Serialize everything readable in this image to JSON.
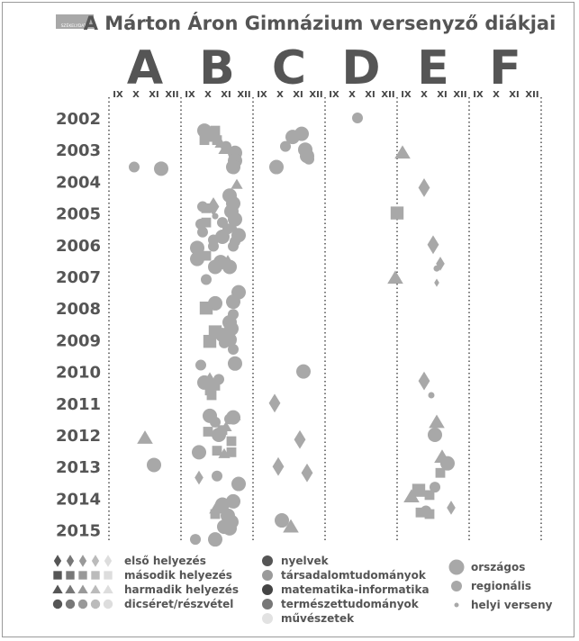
{
  "chart_data": {
    "type": "scatter",
    "title": "A Márton Áron Gimnázium versenyző diákjai",
    "logo_text": "SZÉKELYDATA",
    "columns": [
      "A",
      "B",
      "C",
      "D",
      "E",
      "F"
    ],
    "months": [
      "IX",
      "X",
      "XI",
      "XII"
    ],
    "years": [
      "2002",
      "2003",
      "2004",
      "2005",
      "2006",
      "2007",
      "2008",
      "2009",
      "2010",
      "2011",
      "2012",
      "2013",
      "2014",
      "2015"
    ],
    "grid": "dotted vertical column separators",
    "legend_placement": "bottom",
    "legend": {
      "placement": [
        {
          "label": "első helyezés",
          "shape": "diamond"
        },
        {
          "label": "második helyezés",
          "shape": "square"
        },
        {
          "label": "harmadik helyezés",
          "shape": "triangle"
        },
        {
          "label": "dicséret/részvétel",
          "shape": "circle"
        }
      ],
      "category_colors": [
        "#555555",
        "#777777",
        "#999999",
        "#bbbbbb",
        "#dddddd"
      ],
      "fields": [
        {
          "label": "nyelvek",
          "color": "#555555"
        },
        {
          "label": "társadalomtudományok",
          "color": "#9a9a9a"
        },
        {
          "label": "matematika-informatika",
          "color": "#444444"
        },
        {
          "label": "természettudományok",
          "color": "#777777"
        },
        {
          "label": "művészetek",
          "color": "#e2e2e2"
        }
      ],
      "levels": [
        {
          "label": "országos",
          "size": "large"
        },
        {
          "label": "regionális",
          "size": "medium"
        },
        {
          "label": "helyi verseny",
          "size": "small"
        }
      ]
    },
    "points": [
      {
        "x": 5.3,
        "y": 2002.4,
        "shape": "circle",
        "size": "l",
        "color": "#a8a8a8"
      },
      {
        "x": 5.9,
        "y": 2002.4,
        "shape": "square",
        "size": "m",
        "color": "#a8a8a8"
      },
      {
        "x": 5.7,
        "y": 2002.6,
        "shape": "square",
        "size": "m",
        "color": "#a8a8a8"
      },
      {
        "x": 5.3,
        "y": 2002.7,
        "shape": "square",
        "size": "m",
        "color": "#a8a8a8"
      },
      {
        "x": 6.0,
        "y": 2002.7,
        "shape": "square",
        "size": "m",
        "color": "#a8a8a8"
      },
      {
        "x": 6.2,
        "y": 2002.8,
        "shape": "triangle",
        "size": "m",
        "color": "#a8a8a8"
      },
      {
        "x": 6.5,
        "y": 2002.9,
        "shape": "circle",
        "size": "m",
        "color": "#a8a8a8"
      },
      {
        "x": 6.4,
        "y": 2003.0,
        "shape": "triangle",
        "size": "m",
        "color": "#a8a8a8"
      },
      {
        "x": 7.0,
        "y": 2003.1,
        "shape": "circle",
        "size": "l",
        "color": "#a8a8a8"
      },
      {
        "x": 7.0,
        "y": 2003.35,
        "shape": "circle",
        "size": "l",
        "color": "#a8a8a8"
      },
      {
        "x": 6.9,
        "y": 2003.55,
        "shape": "circle",
        "size": "l",
        "color": "#a8a8a8"
      },
      {
        "x": 10.2,
        "y": 2002.6,
        "shape": "circle",
        "size": "l",
        "color": "#a8a8a8"
      },
      {
        "x": 10.7,
        "y": 2002.5,
        "shape": "circle",
        "size": "l",
        "color": "#a8a8a8"
      },
      {
        "x": 9.8,
        "y": 2002.9,
        "shape": "circle",
        "size": "m",
        "color": "#a8a8a8"
      },
      {
        "x": 10.9,
        "y": 2003.0,
        "shape": "circle",
        "size": "l",
        "color": "#a8a8a8"
      },
      {
        "x": 11.0,
        "y": 2003.2,
        "shape": "circle",
        "size": "l",
        "color": "#a8a8a8"
      },
      {
        "x": 11.1,
        "y": 2003.3,
        "shape": "circle",
        "size": "m",
        "color": "#a8a8a8"
      },
      {
        "x": 9.3,
        "y": 2003.55,
        "shape": "circle",
        "size": "l",
        "color": "#a8a8a8"
      },
      {
        "x": 13.8,
        "y": 2002.0,
        "shape": "circle",
        "size": "m",
        "color": "#a8a8a8"
      },
      {
        "x": 1.4,
        "y": 2003.55,
        "shape": "circle",
        "size": "m",
        "color": "#a8a8a8"
      },
      {
        "x": 2.9,
        "y": 2003.6,
        "shape": "circle",
        "size": "l",
        "color": "#a8a8a8"
      },
      {
        "x": 16.3,
        "y": 2003.1,
        "shape": "triangle",
        "size": "l",
        "color": "#a8a8a8"
      },
      {
        "x": 17.5,
        "y": 2004.2,
        "shape": "diamond",
        "size": "l",
        "color": "#a8a8a8"
      },
      {
        "x": 7.1,
        "y": 2004.1,
        "shape": "triangle",
        "size": "m",
        "color": "#a8a8a8"
      },
      {
        "x": 6.7,
        "y": 2004.45,
        "shape": "circle",
        "size": "l",
        "color": "#a8a8a8"
      },
      {
        "x": 6.9,
        "y": 2004.7,
        "shape": "circle",
        "size": "l",
        "color": "#a8a8a8"
      },
      {
        "x": 6.8,
        "y": 2004.95,
        "shape": "circle",
        "size": "l",
        "color": "#a8a8a8"
      },
      {
        "x": 5.2,
        "y": 2004.8,
        "shape": "circle",
        "size": "m",
        "color": "#a8a8a8"
      },
      {
        "x": 5.4,
        "y": 2004.85,
        "shape": "square",
        "size": "m",
        "color": "#a8a8a8"
      },
      {
        "x": 5.8,
        "y": 2004.8,
        "shape": "diamond",
        "size": "l",
        "color": "#a8a8a8"
      },
      {
        "x": 5.9,
        "y": 2005.1,
        "shape": "circle",
        "size": "s",
        "color": "#a8a8a8"
      },
      {
        "x": 5.1,
        "y": 2005.35,
        "shape": "circle",
        "size": "m",
        "color": "#a8a8a8"
      },
      {
        "x": 5.4,
        "y": 2005.3,
        "shape": "square",
        "size": "m",
        "color": "#a8a8a8"
      },
      {
        "x": 6.3,
        "y": 2005.3,
        "shape": "circle",
        "size": "m",
        "color": "#a8a8a8"
      },
      {
        "x": 7.0,
        "y": 2005.2,
        "shape": "circle",
        "size": "l",
        "color": "#a8a8a8"
      },
      {
        "x": 6.6,
        "y": 2005.5,
        "shape": "circle",
        "size": "m",
        "color": "#a8a8a8"
      },
      {
        "x": 6.9,
        "y": 2005.45,
        "shape": "triangle",
        "size": "m",
        "color": "#a8a8a8"
      },
      {
        "x": 16.0,
        "y": 2005.0,
        "shape": "square",
        "size": "l",
        "color": "#a8a8a8"
      },
      {
        "x": 5.2,
        "y": 2005.6,
        "shape": "circle",
        "size": "m",
        "color": "#a8a8a8"
      },
      {
        "x": 5.8,
        "y": 2005.85,
        "shape": "circle",
        "size": "m",
        "color": "#a8a8a8"
      },
      {
        "x": 6.3,
        "y": 2005.75,
        "shape": "circle",
        "size": "l",
        "color": "#a8a8a8"
      },
      {
        "x": 7.2,
        "y": 2005.7,
        "shape": "circle",
        "size": "l",
        "color": "#a8a8a8"
      },
      {
        "x": 7.0,
        "y": 2005.9,
        "shape": "circle",
        "size": "m",
        "color": "#a8a8a8"
      },
      {
        "x": 4.9,
        "y": 2006.1,
        "shape": "circle",
        "size": "l",
        "color": "#a8a8a8"
      },
      {
        "x": 5.8,
        "y": 2006.05,
        "shape": "circle",
        "size": "m",
        "color": "#a8a8a8"
      },
      {
        "x": 6.9,
        "y": 2006.05,
        "shape": "circle",
        "size": "m",
        "color": "#a8a8a8"
      },
      {
        "x": 4.9,
        "y": 2006.45,
        "shape": "circle",
        "size": "l",
        "color": "#a8a8a8"
      },
      {
        "x": 5.4,
        "y": 2006.35,
        "shape": "square",
        "size": "m",
        "color": "#a8a8a8"
      },
      {
        "x": 6.2,
        "y": 2006.55,
        "shape": "circle",
        "size": "l",
        "color": "#a8a8a8"
      },
      {
        "x": 5.9,
        "y": 2006.7,
        "shape": "circle",
        "size": "l",
        "color": "#a8a8a8"
      },
      {
        "x": 6.7,
        "y": 2006.7,
        "shape": "circle",
        "size": "l",
        "color": "#a8a8a8"
      },
      {
        "x": 6.6,
        "y": 2006.5,
        "shape": "triangle",
        "size": "m",
        "color": "#a8a8a8"
      },
      {
        "x": 18.0,
        "y": 2006.0,
        "shape": "diamond",
        "size": "l",
        "color": "#a8a8a8"
      },
      {
        "x": 18.4,
        "y": 2006.6,
        "shape": "diamond",
        "size": "m",
        "color": "#a8a8a8"
      },
      {
        "x": 18.2,
        "y": 2006.75,
        "shape": "circle",
        "size": "s",
        "color": "#a8a8a8"
      },
      {
        "x": 18.2,
        "y": 2007.2,
        "shape": "diamond",
        "size": "s",
        "color": "#a8a8a8"
      },
      {
        "x": 15.9,
        "y": 2007.05,
        "shape": "triangle",
        "size": "l",
        "color": "#a8a8a8"
      },
      {
        "x": 5.4,
        "y": 2007.1,
        "shape": "circle",
        "size": "m",
        "color": "#a8a8a8"
      },
      {
        "x": 7.2,
        "y": 2007.5,
        "shape": "circle",
        "size": "l",
        "color": "#a8a8a8"
      },
      {
        "x": 6.9,
        "y": 2007.8,
        "shape": "circle",
        "size": "l",
        "color": "#a8a8a8"
      },
      {
        "x": 5.9,
        "y": 2007.85,
        "shape": "circle",
        "size": "l",
        "color": "#a8a8a8"
      },
      {
        "x": 5.4,
        "y": 2008.0,
        "shape": "square",
        "size": "l",
        "color": "#a8a8a8"
      },
      {
        "x": 6.9,
        "y": 2008.2,
        "shape": "circle",
        "size": "m",
        "color": "#a8a8a8"
      },
      {
        "x": 6.7,
        "y": 2008.45,
        "shape": "circle",
        "size": "l",
        "color": "#a8a8a8"
      },
      {
        "x": 6.8,
        "y": 2008.65,
        "shape": "circle",
        "size": "l",
        "color": "#a8a8a8"
      },
      {
        "x": 5.9,
        "y": 2008.75,
        "shape": "square",
        "size": "l",
        "color": "#a8a8a8"
      },
      {
        "x": 6.3,
        "y": 2008.85,
        "shape": "circle",
        "size": "l",
        "color": "#a8a8a8"
      },
      {
        "x": 5.6,
        "y": 2009.05,
        "shape": "square",
        "size": "l",
        "color": "#a8a8a8"
      },
      {
        "x": 6.4,
        "y": 2009.1,
        "shape": "circle",
        "size": "m",
        "color": "#a8a8a8"
      },
      {
        "x": 6.7,
        "y": 2009.0,
        "shape": "circle",
        "size": "l",
        "color": "#a8a8a8"
      },
      {
        "x": 6.9,
        "y": 2009.3,
        "shape": "circle",
        "size": "m",
        "color": "#a8a8a8"
      },
      {
        "x": 5.1,
        "y": 2009.8,
        "shape": "circle",
        "size": "m",
        "color": "#a8a8a8"
      },
      {
        "x": 7.0,
        "y": 2009.75,
        "shape": "circle",
        "size": "l",
        "color": "#a8a8a8"
      },
      {
        "x": 10.8,
        "y": 2010.0,
        "shape": "circle",
        "size": "l",
        "color": "#a8a8a8"
      },
      {
        "x": 17.5,
        "y": 2010.3,
        "shape": "diamond",
        "size": "l",
        "color": "#a8a8a8"
      },
      {
        "x": 17.9,
        "y": 2010.75,
        "shape": "circle",
        "size": "s",
        "color": "#a8a8a8"
      },
      {
        "x": 5.3,
        "y": 2010.35,
        "shape": "circle",
        "size": "l",
        "color": "#a8a8a8"
      },
      {
        "x": 5.6,
        "y": 2010.2,
        "shape": "triangle",
        "size": "m",
        "color": "#a8a8a8"
      },
      {
        "x": 6.1,
        "y": 2010.25,
        "shape": "circle",
        "size": "m",
        "color": "#a8a8a8"
      },
      {
        "x": 5.9,
        "y": 2010.45,
        "shape": "square",
        "size": "m",
        "color": "#a8a8a8"
      },
      {
        "x": 5.6,
        "y": 2010.6,
        "shape": "square",
        "size": "m",
        "color": "#a8a8a8"
      },
      {
        "x": 5.7,
        "y": 2010.75,
        "shape": "square",
        "size": "m",
        "color": "#a8a8a8"
      },
      {
        "x": 9.2,
        "y": 2011.0,
        "shape": "diamond",
        "size": "l",
        "color": "#a8a8a8"
      },
      {
        "x": 5.6,
        "y": 2011.4,
        "shape": "circle",
        "size": "l",
        "color": "#a8a8a8"
      },
      {
        "x": 5.9,
        "y": 2011.6,
        "shape": "circle",
        "size": "m",
        "color": "#a8a8a8"
      },
      {
        "x": 6.7,
        "y": 2011.5,
        "shape": "circle",
        "size": "m",
        "color": "#a8a8a8"
      },
      {
        "x": 6.9,
        "y": 2011.45,
        "shape": "circle",
        "size": "l",
        "color": "#a8a8a8"
      },
      {
        "x": 7.0,
        "y": 2011.4,
        "shape": "triangle",
        "size": "m",
        "color": "#a8a8a8"
      },
      {
        "x": 6.5,
        "y": 2011.75,
        "shape": "triangle",
        "size": "m",
        "color": "#a8a8a8"
      },
      {
        "x": 6.3,
        "y": 2011.85,
        "shape": "square",
        "size": "m",
        "color": "#a8a8a8"
      },
      {
        "x": 6.1,
        "y": 2012.0,
        "shape": "circle",
        "size": "l",
        "color": "#a8a8a8"
      },
      {
        "x": 5.5,
        "y": 2011.9,
        "shape": "square",
        "size": "m",
        "color": "#a8a8a8"
      },
      {
        "x": 18.2,
        "y": 2011.6,
        "shape": "triangle",
        "size": "l",
        "color": "#a8a8a8"
      },
      {
        "x": 18.1,
        "y": 2012.0,
        "shape": "circle",
        "size": "l",
        "color": "#a8a8a8"
      },
      {
        "x": 2.0,
        "y": 2012.1,
        "shape": "triangle",
        "size": "l",
        "color": "#a8a8a8"
      },
      {
        "x": 10.6,
        "y": 2012.15,
        "shape": "diamond",
        "size": "l",
        "color": "#a8a8a8"
      },
      {
        "x": 6.8,
        "y": 2012.2,
        "shape": "square",
        "size": "m",
        "color": "#a8a8a8"
      },
      {
        "x": 5.0,
        "y": 2012.55,
        "shape": "circle",
        "size": "l",
        "color": "#a8a8a8"
      },
      {
        "x": 6.0,
        "y": 2012.5,
        "shape": "square",
        "size": "m",
        "color": "#a8a8a8"
      },
      {
        "x": 6.4,
        "y": 2012.6,
        "shape": "triangle",
        "size": "m",
        "color": "#a8a8a8"
      },
      {
        "x": 6.8,
        "y": 2012.55,
        "shape": "square",
        "size": "m",
        "color": "#a8a8a8"
      },
      {
        "x": 18.5,
        "y": 2012.7,
        "shape": "triangle",
        "size": "l",
        "color": "#a8a8a8"
      },
      {
        "x": 18.8,
        "y": 2012.9,
        "shape": "circle",
        "size": "l",
        "color": "#a8a8a8"
      },
      {
        "x": 18.4,
        "y": 2013.2,
        "shape": "square",
        "size": "m",
        "color": "#a8a8a8"
      },
      {
        "x": 2.5,
        "y": 2012.95,
        "shape": "circle",
        "size": "l",
        "color": "#a8a8a8"
      },
      {
        "x": 9.4,
        "y": 2013.0,
        "shape": "diamond",
        "size": "l",
        "color": "#a8a8a8"
      },
      {
        "x": 11.0,
        "y": 2013.2,
        "shape": "diamond",
        "size": "l",
        "color": "#a8a8a8"
      },
      {
        "x": 5.0,
        "y": 2013.35,
        "shape": "diamond",
        "size": "m",
        "color": "#a8a8a8"
      },
      {
        "x": 6.0,
        "y": 2013.3,
        "shape": "circle",
        "size": "m",
        "color": "#a8a8a8"
      },
      {
        "x": 7.2,
        "y": 2013.55,
        "shape": "circle",
        "size": "l",
        "color": "#a8a8a8"
      },
      {
        "x": 17.2,
        "y": 2013.75,
        "shape": "square",
        "size": "l",
        "color": "#a8a8a8"
      },
      {
        "x": 17.8,
        "y": 2013.9,
        "shape": "square",
        "size": "m",
        "color": "#a8a8a8"
      },
      {
        "x": 18.1,
        "y": 2013.65,
        "shape": "circle",
        "size": "m",
        "color": "#a8a8a8"
      },
      {
        "x": 16.8,
        "y": 2013.95,
        "shape": "triangle",
        "size": "l",
        "color": "#a8a8a8"
      },
      {
        "x": 6.9,
        "y": 2014.1,
        "shape": "circle",
        "size": "l",
        "color": "#a8a8a8"
      },
      {
        "x": 6.0,
        "y": 2014.3,
        "shape": "triangle",
        "size": "l",
        "color": "#a8a8a8"
      },
      {
        "x": 6.3,
        "y": 2014.2,
        "shape": "circle",
        "size": "l",
        "color": "#a8a8a8"
      },
      {
        "x": 5.9,
        "y": 2014.5,
        "shape": "square",
        "size": "m",
        "color": "#a8a8a8"
      },
      {
        "x": 6.6,
        "y": 2014.55,
        "shape": "circle",
        "size": "l",
        "color": "#a8a8a8"
      },
      {
        "x": 6.8,
        "y": 2014.75,
        "shape": "circle",
        "size": "l",
        "color": "#a8a8a8"
      },
      {
        "x": 6.4,
        "y": 2014.9,
        "shape": "circle",
        "size": "l",
        "color": "#a8a8a8"
      },
      {
        "x": 6.7,
        "y": 2014.95,
        "shape": "circle",
        "size": "l",
        "color": "#a8a8a8"
      },
      {
        "x": 9.6,
        "y": 2014.7,
        "shape": "circle",
        "size": "l",
        "color": "#a8a8a8"
      },
      {
        "x": 10.1,
        "y": 2014.9,
        "shape": "triangle",
        "size": "l",
        "color": "#a8a8a8"
      },
      {
        "x": 17.3,
        "y": 2014.45,
        "shape": "square",
        "size": "m",
        "color": "#a8a8a8"
      },
      {
        "x": 17.6,
        "y": 2014.4,
        "shape": "circle",
        "size": "m",
        "color": "#a8a8a8"
      },
      {
        "x": 17.8,
        "y": 2014.5,
        "shape": "square",
        "size": "m",
        "color": "#a8a8a8"
      },
      {
        "x": 19.0,
        "y": 2014.3,
        "shape": "diamond",
        "size": "m",
        "color": "#a8a8a8"
      },
      {
        "x": 4.8,
        "y": 2015.3,
        "shape": "circle",
        "size": "m",
        "color": "#a8a8a8"
      },
      {
        "x": 5.9,
        "y": 2015.3,
        "shape": "circle",
        "size": "l",
        "color": "#a8a8a8"
      }
    ]
  }
}
